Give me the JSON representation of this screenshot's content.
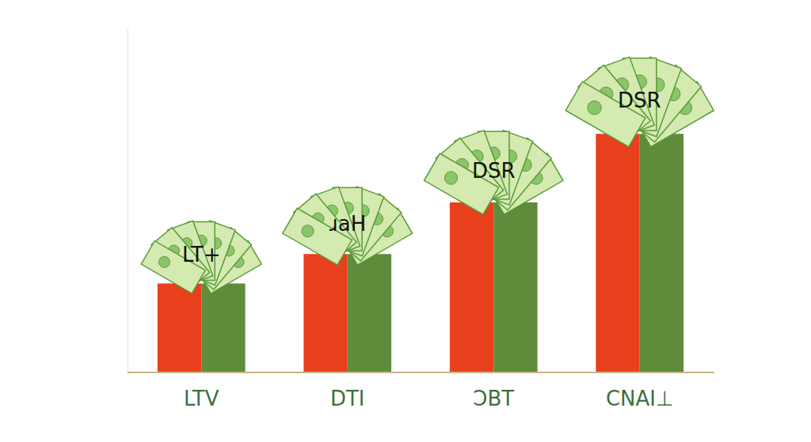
{
  "chart_data": {
    "type": "bar",
    "categories": [
      "LTV",
      "DTI",
      "ƆBT",
      "CNAI⊥"
    ],
    "series": [
      {
        "color": "#e8401c",
        "values": [
          36,
          48,
          69,
          97
        ]
      },
      {
        "color": "#5e8c3a",
        "values": [
          36,
          48,
          69,
          97
        ]
      }
    ],
    "annotations": [
      "LT+",
      "ɹaH",
      "DSR",
      "DSR"
    ],
    "ylim": [
      0,
      140
    ],
    "tick_labels": "x",
    "grid": false
  }
}
